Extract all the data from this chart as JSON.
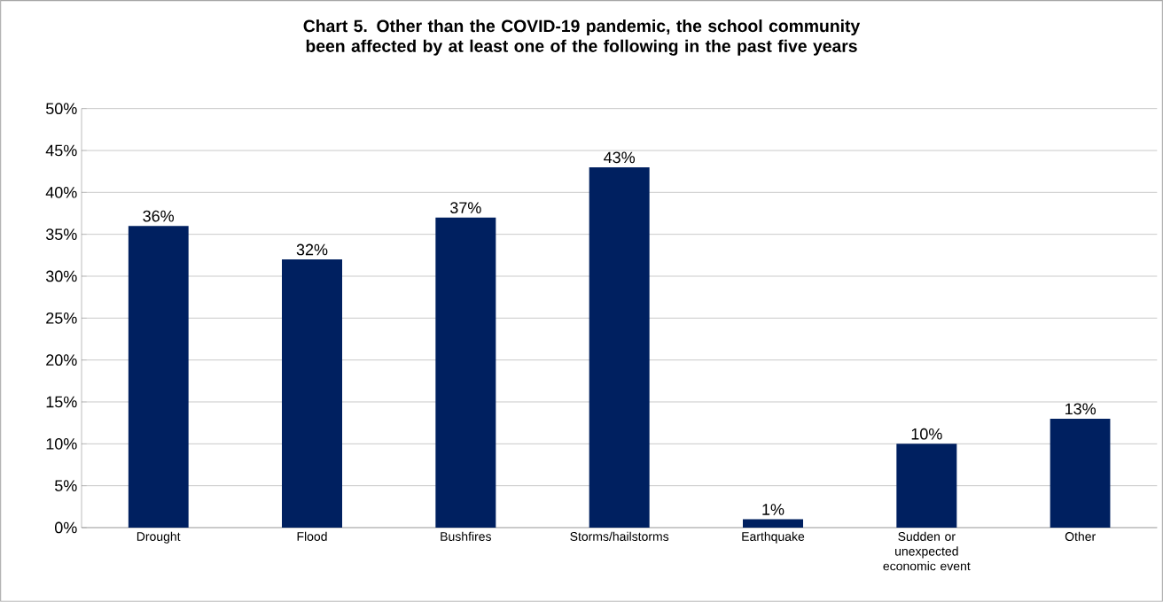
{
  "chart_data": {
    "type": "bar",
    "title": "Chart 5. Other than the COVID-19 pandemic, the school community been affected by at least one of the following in the past five years",
    "categories": [
      "Drought",
      "Flood",
      "Bushfires",
      "Storms/hailstorms",
      "Earthquake",
      "Sudden or unexpected economic event",
      "Other"
    ],
    "values": [
      36,
      32,
      37,
      43,
      1,
      10,
      13
    ],
    "value_labels": [
      "36%",
      "32%",
      "37%",
      "43%",
      "1%",
      "10%",
      "13%"
    ],
    "color": "#002060",
    "ylim": [
      0,
      50
    ],
    "yticks": [
      {
        "value": 0,
        "label": "0%"
      },
      {
        "value": 5,
        "label": "5%"
      },
      {
        "value": 10,
        "label": "10%"
      },
      {
        "value": 15,
        "label": "15%"
      },
      {
        "value": 20,
        "label": "20%"
      },
      {
        "value": 25,
        "label": "25%"
      },
      {
        "value": 30,
        "label": "30%"
      },
      {
        "value": 35,
        "label": "35%"
      },
      {
        "value": 40,
        "label": "40%"
      },
      {
        "value": 45,
        "label": "45%"
      },
      {
        "value": 50,
        "label": "50%"
      }
    ],
    "grid": "y"
  }
}
